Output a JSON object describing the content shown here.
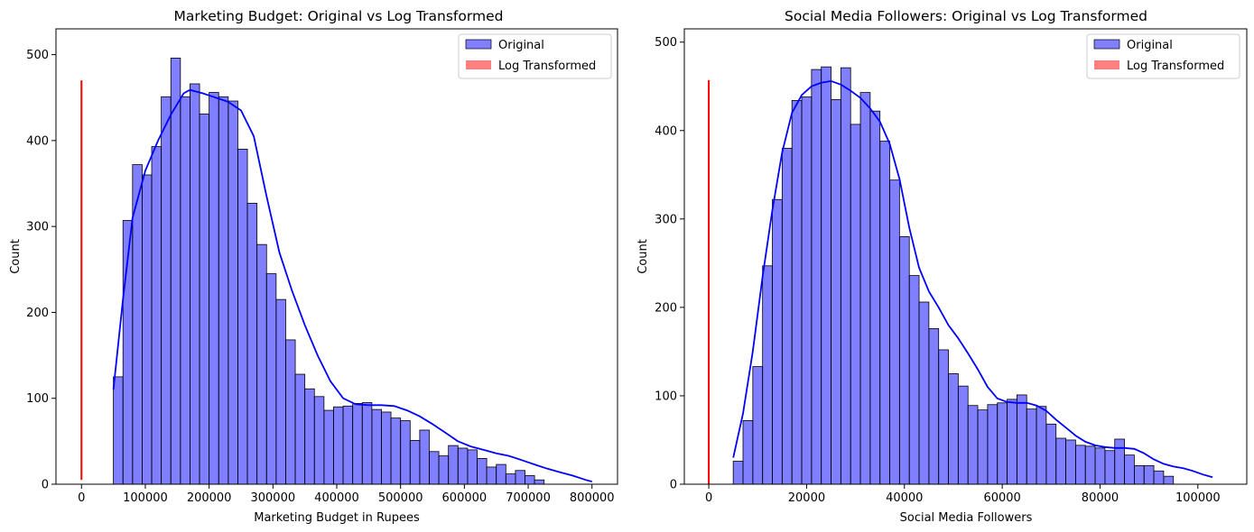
{
  "chart_data": [
    {
      "type": "histogram",
      "title": "Marketing Budget: Original vs Log Transformed",
      "xlabel": "Marketing Budget in Rupees",
      "ylabel": "Count",
      "xlim": [
        -40000,
        840000
      ],
      "ylim": [
        0,
        530
      ],
      "xticks": [
        0,
        100000,
        200000,
        300000,
        400000,
        500000,
        600000,
        700000,
        800000
      ],
      "yticks": [
        0,
        100,
        200,
        300,
        400,
        500
      ],
      "grid": false,
      "legend_position": "top-right",
      "legend": [
        "Original",
        "Log Transformed"
      ],
      "colors": {
        "original": "#0000ff",
        "log": "#ff0000"
      },
      "bins": {
        "start": 50000,
        "width": 15000
      },
      "values": [
        125,
        307,
        372,
        360,
        393,
        451,
        496,
        451,
        466,
        431,
        456,
        451,
        446,
        390,
        327,
        279,
        245,
        215,
        168,
        128,
        111,
        102,
        86,
        90,
        91,
        94,
        95,
        87,
        84,
        77,
        74,
        51,
        63,
        38,
        33,
        45,
        42,
        40,
        30,
        20,
        23,
        12,
        16,
        10,
        5
      ],
      "kde": [
        [
          50000,
          110
        ],
        [
          65000,
          215
        ],
        [
          80000,
          310
        ],
        [
          100000,
          365
        ],
        [
          120000,
          400
        ],
        [
          140000,
          430
        ],
        [
          160000,
          455
        ],
        [
          170000,
          459
        ],
        [
          190000,
          455
        ],
        [
          210000,
          450
        ],
        [
          230000,
          445
        ],
        [
          250000,
          435
        ],
        [
          270000,
          405
        ],
        [
          290000,
          335
        ],
        [
          310000,
          270
        ],
        [
          330000,
          225
        ],
        [
          350000,
          185
        ],
        [
          370000,
          150
        ],
        [
          390000,
          120
        ],
        [
          410000,
          100
        ],
        [
          430000,
          93
        ],
        [
          450000,
          92
        ],
        [
          470000,
          92
        ],
        [
          490000,
          91
        ],
        [
          510000,
          86
        ],
        [
          530000,
          79
        ],
        [
          550000,
          70
        ],
        [
          570000,
          60
        ],
        [
          590000,
          50
        ],
        [
          610000,
          44
        ],
        [
          630000,
          40
        ],
        [
          650000,
          36
        ],
        [
          670000,
          33
        ],
        [
          690000,
          28
        ],
        [
          710000,
          23
        ],
        [
          730000,
          18
        ],
        [
          750000,
          14
        ],
        [
          770000,
          10
        ],
        [
          790000,
          5
        ],
        [
          800000,
          3
        ]
      ],
      "log_transformed_line": {
        "x": 0,
        "y_range": [
          5,
          470
        ]
      }
    },
    {
      "type": "histogram",
      "title": "Social Media Followers: Original vs Log Transformed",
      "xlabel": "Social Media Followers",
      "ylabel": "Count",
      "xlim": [
        -5000,
        110000
      ],
      "ylim": [
        0,
        515
      ],
      "xticks": [
        0,
        20000,
        40000,
        60000,
        80000,
        100000
      ],
      "yticks": [
        0,
        100,
        200,
        300,
        400,
        500
      ],
      "grid": false,
      "legend_position": "top-right",
      "legend": [
        "Original",
        "Log Transformed"
      ],
      "colors": {
        "original": "#0000ff",
        "log": "#ff0000"
      },
      "bins": {
        "start": 5000,
        "width": 2000
      },
      "values": [
        26,
        72,
        133,
        247,
        322,
        380,
        434,
        438,
        469,
        472,
        435,
        471,
        407,
        443,
        422,
        388,
        344,
        280,
        236,
        206,
        176,
        152,
        125,
        111,
        89,
        84,
        90,
        92,
        96,
        101,
        85,
        88,
        68,
        52,
        50,
        44,
        43,
        41,
        38,
        51,
        33,
        21,
        21,
        15,
        9
      ],
      "kde": [
        [
          5000,
          30
        ],
        [
          7000,
          80
        ],
        [
          9000,
          150
        ],
        [
          11000,
          235
        ],
        [
          13000,
          310
        ],
        [
          15000,
          375
        ],
        [
          17000,
          420
        ],
        [
          19000,
          440
        ],
        [
          21000,
          450
        ],
        [
          23000,
          454
        ],
        [
          25000,
          456
        ],
        [
          27000,
          452
        ],
        [
          29000,
          445
        ],
        [
          31000,
          437
        ],
        [
          33000,
          425
        ],
        [
          35000,
          410
        ],
        [
          37000,
          385
        ],
        [
          39000,
          345
        ],
        [
          41000,
          290
        ],
        [
          43000,
          245
        ],
        [
          45000,
          218
        ],
        [
          47000,
          200
        ],
        [
          49000,
          180
        ],
        [
          51000,
          165
        ],
        [
          53000,
          148
        ],
        [
          55000,
          130
        ],
        [
          57000,
          110
        ],
        [
          59000,
          97
        ],
        [
          61000,
          93
        ],
        [
          63000,
          92
        ],
        [
          65000,
          92
        ],
        [
          67000,
          89
        ],
        [
          69000,
          83
        ],
        [
          71000,
          73
        ],
        [
          73000,
          64
        ],
        [
          75000,
          55
        ],
        [
          77000,
          48
        ],
        [
          79000,
          44
        ],
        [
          81000,
          42
        ],
        [
          83000,
          41
        ],
        [
          85000,
          41
        ],
        [
          87000,
          40
        ],
        [
          89000,
          35
        ],
        [
          91000,
          28
        ],
        [
          93000,
          23
        ],
        [
          95000,
          20
        ],
        [
          97000,
          18
        ],
        [
          99000,
          15
        ],
        [
          101000,
          11
        ],
        [
          103000,
          8
        ]
      ],
      "log_transformed_line": {
        "x": 0,
        "y_range": [
          0,
          457
        ]
      }
    }
  ]
}
